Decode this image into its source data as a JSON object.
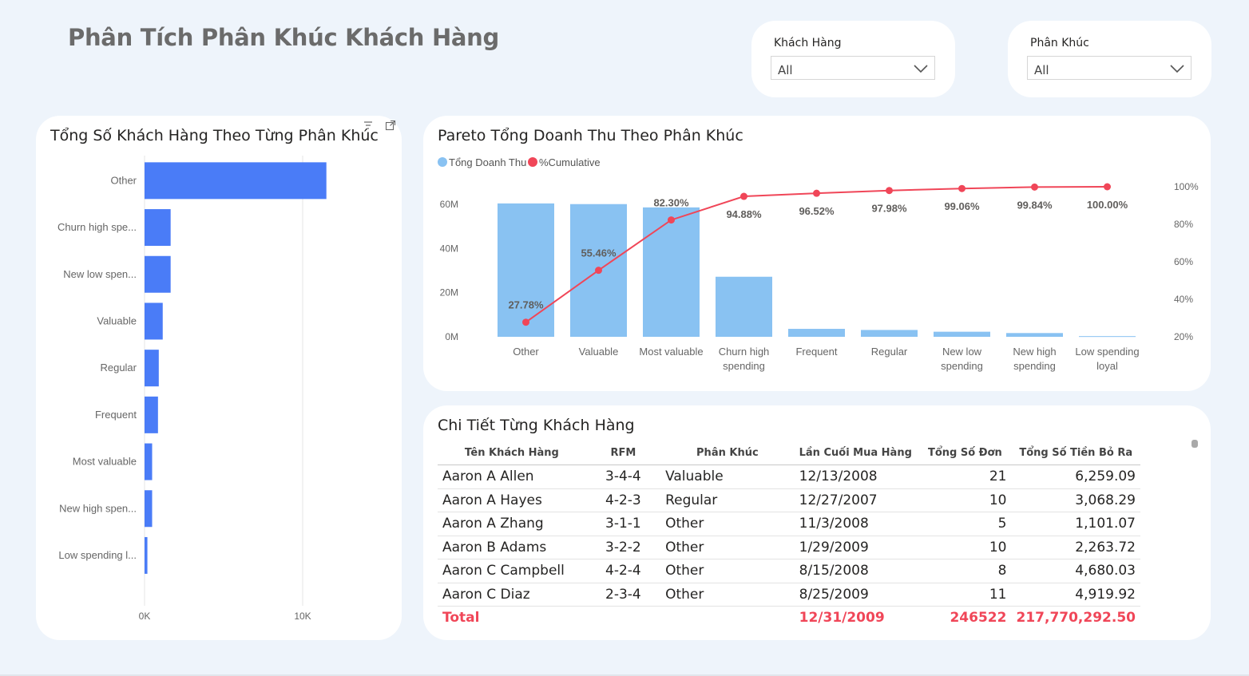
{
  "page_title": "Phân Tích Phân Khúc Khách Hàng",
  "filters": {
    "customer": {
      "label": "Khách Hàng",
      "value": "All"
    },
    "segment": {
      "label": "Phân Khúc",
      "value": "All"
    }
  },
  "customers_card": {
    "title": "Tổng Số Khách Hàng Theo Từng Phân Khúc"
  },
  "pareto_card": {
    "title": "Pareto Tổng Doanh Thu Theo Phân Khúc"
  },
  "table_card": {
    "title": "Chi Tiết Từng Khách Hàng"
  },
  "chart_data": [
    {
      "type": "bar",
      "orientation": "horizontal",
      "title": "Tổng Số Khách Hàng Theo Từng Phân Khúc",
      "categories": [
        "Other",
        "Churn high spe...",
        "New low spen...",
        "Valuable",
        "Regular",
        "Frequent",
        "Most valuable",
        "New high spen...",
        "Low spending l..."
      ],
      "values": [
        11500,
        1650,
        1650,
        1150,
        900,
        850,
        480,
        480,
        180
      ],
      "xlim": [
        0,
        13000
      ],
      "xticks": [
        {
          "value": 0,
          "label": "0K"
        },
        {
          "value": 10000,
          "label": "10K"
        }
      ],
      "color": "#4a7cf7"
    },
    {
      "type": "bar",
      "title": "Pareto Tổng Doanh Thu Theo Phân Khúc",
      "categories": [
        [
          "Other"
        ],
        [
          "Valuable"
        ],
        [
          "Most valuable"
        ],
        [
          "Churn high",
          "spending"
        ],
        [
          "Frequent"
        ],
        [
          "Regular"
        ],
        [
          "New low",
          "spending"
        ],
        [
          "New high",
          "spending"
        ],
        [
          "Low spending",
          "loyal"
        ]
      ],
      "series": [
        {
          "name": "Tổng Doanh Thu",
          "type": "bar",
          "color": "#89c2f2",
          "values": [
            60400000,
            60100000,
            58600000,
            27200000,
            3600000,
            3100000,
            2300000,
            1700000,
            300000
          ]
        },
        {
          "name": "%Cumulative",
          "type": "line",
          "color": "#f04658",
          "values": [
            27.78,
            55.46,
            82.3,
            94.88,
            96.52,
            97.98,
            99.06,
            99.84,
            100.0
          ],
          "labels": [
            "27.78%",
            "55.46%",
            "82.30%",
            "94.88%",
            "96.52%",
            "97.98%",
            "99.06%",
            "99.84%",
            "100.00%"
          ]
        }
      ],
      "ylim_left": [
        0,
        60000000
      ],
      "yticks_left": [
        {
          "value": 0,
          "label": "0M"
        },
        {
          "value": 20000000,
          "label": "20M"
        },
        {
          "value": 40000000,
          "label": "40M"
        },
        {
          "value": 60000000,
          "label": "60M"
        }
      ],
      "ylim_right": [
        20,
        100
      ],
      "yticks_right": [
        {
          "value": 20,
          "label": "20%"
        },
        {
          "value": 40,
          "label": "40%"
        },
        {
          "value": 60,
          "label": "60%"
        },
        {
          "value": 80,
          "label": "80%"
        },
        {
          "value": 100,
          "label": "100%"
        }
      ],
      "legend": "top-left"
    }
  ],
  "table": {
    "columns": [
      "Tên Khách Hàng",
      "RFM",
      "Phân Khúc",
      "Lần Cuối Mua Hàng",
      "Tổng Số Đơn",
      "Tổng Số Tiền Bỏ Ra"
    ],
    "rows": [
      [
        "Aaron A Allen",
        "3-4-4",
        "Valuable",
        "12/13/2008",
        "21",
        "6,259.09"
      ],
      [
        "Aaron A Hayes",
        "4-2-3",
        "Regular",
        "12/27/2007",
        "10",
        "3,068.29"
      ],
      [
        "Aaron A Zhang",
        "3-1-1",
        "Other",
        "11/3/2008",
        "5",
        "1,101.07"
      ],
      [
        "Aaron B Adams",
        "3-2-2",
        "Other",
        "1/29/2009",
        "10",
        "2,263.72"
      ],
      [
        "Aaron C Campbell",
        "4-2-4",
        "Other",
        "8/15/2008",
        "8",
        "4,680.03"
      ],
      [
        "Aaron C Diaz",
        "2-3-4",
        "Other",
        "8/25/2009",
        "11",
        "4,919.92"
      ]
    ],
    "total": {
      "label": "Total",
      "last_purchase": "12/31/2009",
      "orders": "246522",
      "spent": "217,770,292.50"
    }
  }
}
